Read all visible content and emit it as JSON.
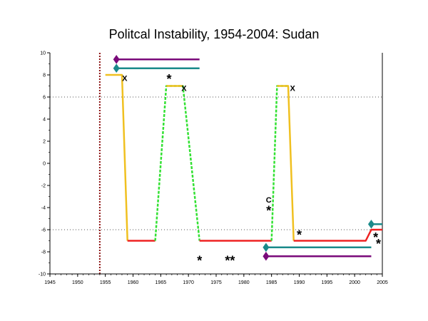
{
  "chart_data": {
    "type": "line",
    "title": "Politcal Instability, 1954-2004: Sudan",
    "xlim": [
      1945,
      2005
    ],
    "ylim": [
      -10,
      10
    ],
    "x_ticks": [
      1945,
      1950,
      1955,
      1960,
      1965,
      1970,
      1975,
      1980,
      1985,
      1990,
      1995,
      2000,
      2005
    ],
    "y_ticks": [
      10,
      8,
      6,
      4,
      2,
      0,
      -2,
      -4,
      -6,
      -8,
      -10
    ],
    "reference_lines": [
      6,
      -6
    ],
    "start_marker_year": 1954,
    "colors": {
      "autocracy": "#e8e020",
      "democracy": "#33e133",
      "anocracy": "#ee2222",
      "transition": "#f0c020",
      "teal": "#1a8a8a",
      "purple": "#7a0a7a",
      "marker": "#8b1010"
    },
    "series": [
      {
        "color": "#f0c020",
        "dashed": false,
        "points": [
          [
            1955,
            8
          ],
          [
            1958,
            8
          ],
          [
            1958,
            8
          ],
          [
            1959,
            -7
          ]
        ]
      },
      {
        "color": "#ee2222",
        "dashed": false,
        "points": [
          [
            1959,
            -7
          ],
          [
            1964,
            -7
          ]
        ]
      },
      {
        "color": "#33e133",
        "dashed": true,
        "points": [
          [
            1964,
            -7
          ],
          [
            1966,
            7
          ],
          [
            1968,
            7
          ],
          [
            1969,
            7
          ],
          [
            1972,
            -7
          ]
        ]
      },
      {
        "color": "#f0c020",
        "dashed": false,
        "points": [
          [
            1966,
            7
          ],
          [
            1969,
            7
          ]
        ]
      },
      {
        "color": "#ee2222",
        "dashed": false,
        "points": [
          [
            1972,
            -7
          ],
          [
            1985,
            -7
          ]
        ]
      },
      {
        "color": "#33e133",
        "dashed": true,
        "points": [
          [
            1985,
            -7
          ],
          [
            1986,
            7
          ],
          [
            1988,
            7
          ]
        ]
      },
      {
        "color": "#f0c020",
        "dashed": false,
        "points": [
          [
            1986,
            7
          ],
          [
            1988,
            7
          ],
          [
            1989,
            -7
          ]
        ]
      },
      {
        "color": "#ee2222",
        "dashed": false,
        "points": [
          [
            1989,
            -7
          ],
          [
            2002,
            -7
          ],
          [
            2003,
            -6
          ],
          [
            2005,
            -6
          ]
        ]
      }
    ],
    "bars": [
      {
        "color": "#7a0a7a",
        "y": 9.4,
        "x_start": 1957,
        "x_end": 1972
      },
      {
        "color": "#1a8a8a",
        "y": 8.6,
        "x_start": 1957,
        "x_end": 1972
      },
      {
        "color": "#1a8a8a",
        "y": -7.6,
        "x_start": 1984,
        "x_end": 2003
      },
      {
        "color": "#7a0a7a",
        "y": -8.4,
        "x_start": 1984,
        "x_end": 2003
      },
      {
        "color": "#1a8a8a",
        "y": -5.5,
        "x_start": 2003,
        "x_end": 2005
      }
    ],
    "annotations": [
      {
        "text": "X",
        "x": 1958.5,
        "y": 7.7
      },
      {
        "text": "*",
        "x": 1966.5,
        "y": 7.8
      },
      {
        "text": "X",
        "x": 1969.2,
        "y": 6.8
      },
      {
        "text": "X",
        "x": 1988.8,
        "y": 6.8
      },
      {
        "text": "*",
        "x": 1972,
        "y": -8.6
      },
      {
        "text": "**",
        "x": 1977.5,
        "y": -8.6
      },
      {
        "text": "C",
        "x": 1984.5,
        "y": -3.3
      },
      {
        "text": "*",
        "x": 1984.5,
        "y": -4.1
      },
      {
        "text": "*",
        "x": 1990,
        "y": -6.3
      },
      {
        "text": "*",
        "x": 2003.8,
        "y": -6.5
      },
      {
        "text": "*",
        "x": 2004.3,
        "y": -7.1
      }
    ]
  }
}
